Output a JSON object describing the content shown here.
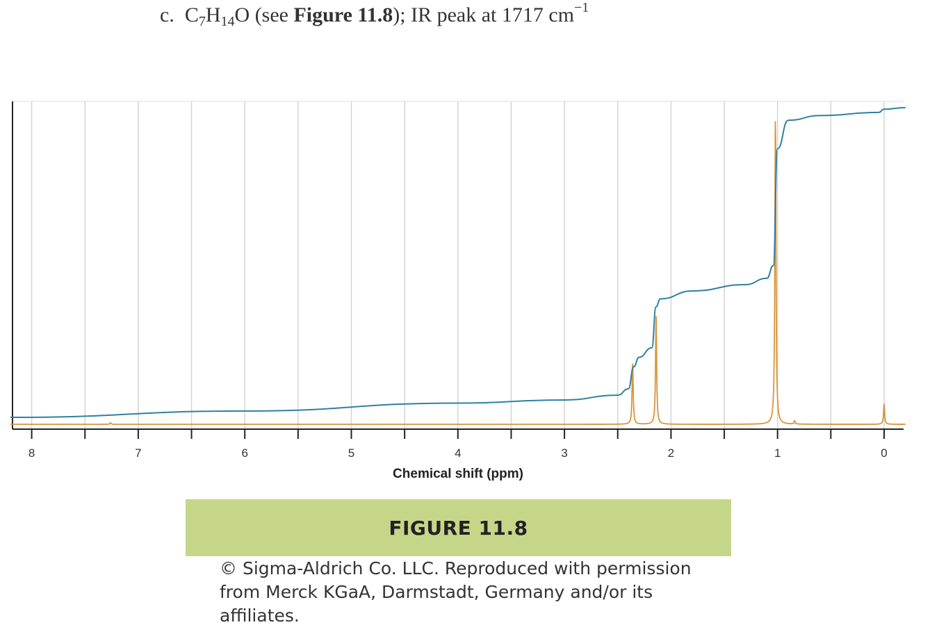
{
  "question": {
    "label": "c.",
    "formula_c": "C",
    "formula_c_sub": "7",
    "formula_h": "H",
    "formula_h_sub": "14",
    "formula_o": "O",
    "see_open": "(see ",
    "figure_ref": "Figure 11.8",
    "see_close": ");",
    "ir_text": "IR peak at 1717 cm",
    "ir_exp": "−1"
  },
  "chart_data": {
    "type": "line",
    "xlabel": "Chemical shift (ppm)",
    "ylabel": "",
    "xlim": [
      8.2,
      -0.2
    ],
    "x_reversed": true,
    "x_ticks": [
      "8",
      "7",
      "6",
      "5",
      "4",
      "3",
      "2",
      "1",
      "0"
    ],
    "grid": true,
    "series": [
      {
        "role": "spectrum",
        "color": "#d9943a",
        "peaks": [
          {
            "x": 7.26,
            "rel_height": 0.005
          },
          {
            "x": 2.36,
            "rel_height": 0.2
          },
          {
            "x": 2.14,
            "rel_height": 0.35
          },
          {
            "x": 1.02,
            "rel_height": 1.0
          },
          {
            "x": 0.84,
            "rel_height": 0.01
          },
          {
            "x": 0.0,
            "rel_height": 0.065
          }
        ]
      },
      {
        "role": "integration",
        "color": "#2f7fa0",
        "x": [
          8.2,
          6.0,
          4.0,
          3.0,
          2.5,
          2.4,
          2.35,
          2.3,
          2.18,
          2.14,
          2.1,
          1.8,
          1.3,
          1.1,
          1.04,
          1.0,
          0.9,
          0.6,
          0.05,
          0.0,
          -0.2
        ],
        "y": [
          0.02,
          0.04,
          0.065,
          0.075,
          0.09,
          0.11,
          0.18,
          0.21,
          0.24,
          0.37,
          0.395,
          0.42,
          0.44,
          0.46,
          0.5,
          0.87,
          0.96,
          0.975,
          0.985,
          0.995,
          1.0
        ]
      }
    ]
  },
  "caption": {
    "title": "FIGURE 11.8",
    "credit": "© Sigma-Aldrich Co. LLC. Reproduced with permission from Merck KGaA, Darmstadt, Germany and/or its affiliates."
  }
}
